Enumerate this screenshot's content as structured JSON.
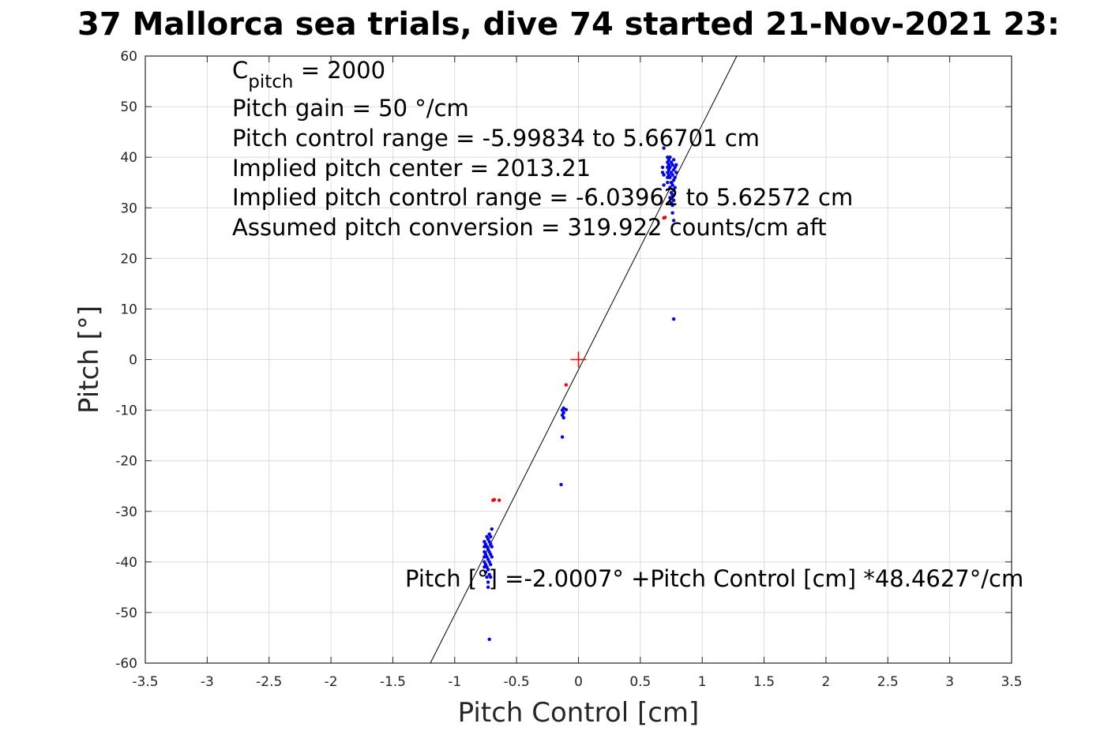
{
  "chart_data": {
    "type": "scatter",
    "title": "37 Mallorca sea trials, dive 74 started 21-Nov-2021 23:",
    "xlabel": "Pitch Control [cm]",
    "ylabel": "Pitch [°]",
    "xlim": [
      -3.5,
      3.5
    ],
    "ylim": [
      -60,
      60
    ],
    "xticks": [
      -3.5,
      -3,
      -2.5,
      -2,
      -1.5,
      -1,
      -0.5,
      0,
      0.5,
      1,
      1.5,
      2,
      2.5,
      3,
      3.5
    ],
    "xtick_labels": [
      "-3.5",
      "-3",
      "-2.5",
      "-2",
      "-1.5",
      "-1",
      "-0.5",
      "0",
      "0.5",
      "1",
      "1.5",
      "2",
      "2.5",
      "3",
      "3.5"
    ],
    "yticks": [
      -60,
      -50,
      -40,
      -30,
      -20,
      -10,
      0,
      10,
      20,
      30,
      40,
      50,
      60
    ],
    "ytick_labels": [
      "-60",
      "-50",
      "-40",
      "-30",
      "-20",
      "-10",
      "0",
      "10",
      "20",
      "30",
      "40",
      "50",
      "60"
    ],
    "grid": true,
    "annotations": {
      "c_pitch_main": "C",
      "c_pitch_sub": "pitch",
      "c_pitch_value": " = 2000",
      "pitch_gain": "Pitch gain = 50 °/cm",
      "pitch_control_range": "Pitch control range = -5.99834 to 5.66701 cm",
      "implied_pitch_center": "Implied pitch center = 2013.21",
      "implied_pitch_control_range": "Implied pitch control range = -6.03962 to 5.62572 cm",
      "assumed_pitch_conversion": "Assumed pitch conversion = 319.922 counts/cm aft",
      "fit_equation": "Pitch [°] =-2.0007° +Pitch Control [cm] *48.4627°/cm"
    },
    "fit_line": {
      "intercept": -2.0007,
      "slope": 48.4627,
      "color": "#000000"
    },
    "center_marker": {
      "x": 0,
      "y": 0,
      "color": "#ff0000"
    },
    "series": [
      {
        "color": "#0000ff",
        "points": [
          [
            -0.76,
            -36
          ],
          [
            -0.76,
            -37
          ],
          [
            -0.76,
            -38
          ],
          [
            -0.76,
            -39
          ],
          [
            -0.76,
            -40
          ],
          [
            -0.76,
            -41
          ],
          [
            -0.75,
            -36.5
          ],
          [
            -0.75,
            -38.5
          ],
          [
            -0.75,
            -40.5
          ],
          [
            -0.75,
            -42
          ],
          [
            -0.74,
            -35
          ],
          [
            -0.74,
            -37
          ],
          [
            -0.74,
            -39
          ],
          [
            -0.74,
            -41
          ],
          [
            -0.74,
            -43
          ],
          [
            -0.73,
            -35.5
          ],
          [
            -0.73,
            -37.5
          ],
          [
            -0.73,
            -39.5
          ],
          [
            -0.73,
            -41.5
          ],
          [
            -0.73,
            -44
          ],
          [
            -0.73,
            -45
          ],
          [
            -0.72,
            -34.5
          ],
          [
            -0.72,
            -36
          ],
          [
            -0.72,
            -38
          ],
          [
            -0.72,
            -40
          ],
          [
            -0.72,
            -42.5
          ],
          [
            -0.71,
            -35
          ],
          [
            -0.71,
            -36.5
          ],
          [
            -0.71,
            -38.5
          ],
          [
            -0.71,
            -40.5
          ],
          [
            -0.71,
            -43
          ],
          [
            -0.7,
            -33.5
          ],
          [
            -0.7,
            -37
          ],
          [
            -0.7,
            -39
          ],
          [
            -0.72,
            -55.3
          ],
          [
            -0.13,
            -10
          ],
          [
            -0.13,
            -11
          ],
          [
            -0.12,
            -10.5
          ],
          [
            -0.12,
            -11.5
          ],
          [
            -0.12,
            -9.6
          ],
          [
            -0.1,
            -9.9
          ],
          [
            -0.13,
            -15.3
          ],
          [
            -0.14,
            -24.7
          ],
          [
            0.69,
            41.8
          ],
          [
            0.68,
            38
          ],
          [
            0.68,
            37
          ],
          [
            0.69,
            36.5
          ],
          [
            0.69,
            34.5
          ],
          [
            0.72,
            40
          ],
          [
            0.72,
            39
          ],
          [
            0.72,
            38
          ],
          [
            0.72,
            37
          ],
          [
            0.72,
            36
          ],
          [
            0.72,
            35
          ],
          [
            0.73,
            39.5
          ],
          [
            0.73,
            38.5
          ],
          [
            0.73,
            37.5
          ],
          [
            0.73,
            36.5
          ],
          [
            0.74,
            40
          ],
          [
            0.74,
            38
          ],
          [
            0.74,
            36
          ],
          [
            0.74,
            34
          ],
          [
            0.74,
            32
          ],
          [
            0.75,
            39
          ],
          [
            0.75,
            37
          ],
          [
            0.75,
            35
          ],
          [
            0.75,
            33
          ],
          [
            0.75,
            31
          ],
          [
            0.76,
            38.5
          ],
          [
            0.76,
            36.5
          ],
          [
            0.76,
            34.5
          ],
          [
            0.76,
            32.5
          ],
          [
            0.76,
            30.5
          ],
          [
            0.76,
            29
          ],
          [
            0.77,
            39.5
          ],
          [
            0.77,
            37.5
          ],
          [
            0.77,
            35.5
          ],
          [
            0.77,
            33.5
          ],
          [
            0.77,
            31.5
          ],
          [
            0.77,
            27.5
          ],
          [
            0.78,
            38
          ],
          [
            0.78,
            36
          ],
          [
            0.78,
            34
          ],
          [
            0.79,
            37
          ],
          [
            0.79,
            38.5
          ],
          [
            0.77,
            8
          ]
        ]
      },
      {
        "color": "#ff0000",
        "points": [
          [
            -0.69,
            -27.8
          ],
          [
            -0.68,
            -27.7
          ],
          [
            -0.64,
            -27.8
          ],
          [
            -0.1,
            -5
          ],
          [
            0.69,
            28
          ],
          [
            0.7,
            28.1
          ]
        ]
      }
    ]
  }
}
